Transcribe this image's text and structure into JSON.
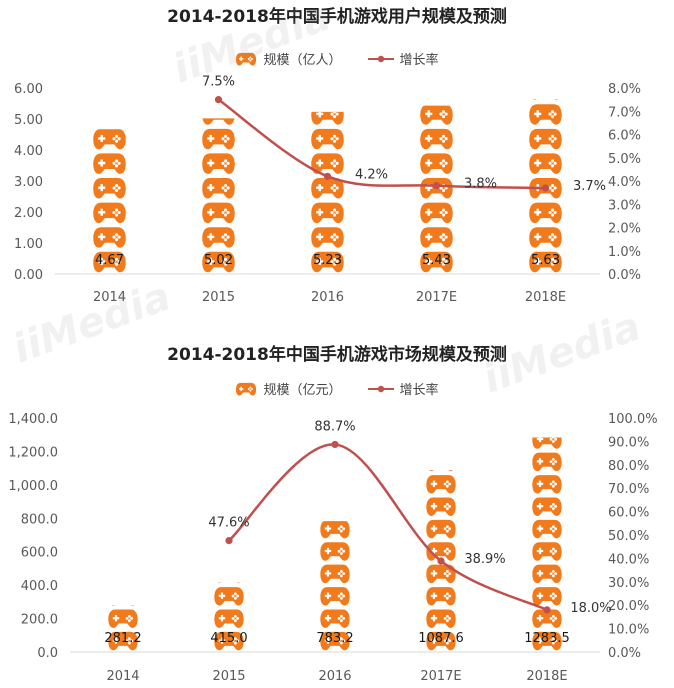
{
  "colors": {
    "bar": "#f07a1c",
    "line": "#c0504d",
    "axis_text": "#595959"
  },
  "watermarks": [
    {
      "text": "iiMedia"
    },
    {
      "text": "iiMedia"
    },
    {
      "text": "iiMedia"
    }
  ],
  "chart_data": [
    {
      "type": "bar",
      "title": "2014-2018年中国手机游戏用户规模及预测",
      "categories": [
        "2014",
        "2015",
        "2016",
        "2017E",
        "2018E"
      ],
      "series": [
        {
          "name": "规模（亿人）",
          "type": "bar",
          "axis": "left",
          "icon": "gamepad-icon",
          "values": [
            4.67,
            5.02,
            5.23,
            5.43,
            5.63
          ],
          "labels": [
            "4.67",
            "5.02",
            "5.23",
            "5.43",
            "5.63"
          ]
        },
        {
          "name": "增长率",
          "type": "line",
          "axis": "right",
          "values": [
            null,
            7.5,
            4.2,
            3.8,
            3.7
          ],
          "labels": [
            "",
            "7.5%",
            "4.2%",
            "3.8%",
            "3.7%"
          ]
        }
      ],
      "y_left": {
        "ylim": [
          0,
          6
        ],
        "ticks": [
          "0.00",
          "1.00",
          "2.00",
          "3.00",
          "4.00",
          "5.00",
          "6.00"
        ]
      },
      "y_right": {
        "ylim": [
          0,
          8
        ],
        "ticks": [
          "0.0%",
          "1.0%",
          "2.0%",
          "3.0%",
          "4.0%",
          "5.0%",
          "6.0%",
          "7.0%",
          "8.0%"
        ]
      },
      "legend_position": "top",
      "grid": false
    },
    {
      "type": "bar",
      "title": "2014-2018年中国手机游戏市场规模及预测",
      "categories": [
        "2014",
        "2015",
        "2016",
        "2017E",
        "2018E"
      ],
      "series": [
        {
          "name": "规模（亿元）",
          "type": "bar",
          "axis": "left",
          "icon": "gamepad-icon",
          "values": [
            281.2,
            415.0,
            783.2,
            1087.6,
            1283.5
          ],
          "labels": [
            "281.2",
            "415.0",
            "783.2",
            "1087.6",
            "1283.5"
          ]
        },
        {
          "name": "增长率",
          "type": "line",
          "axis": "right",
          "values": [
            null,
            47.6,
            88.7,
            38.9,
            18.0
          ],
          "labels": [
            "",
            "47.6%",
            "88.7%",
            "38.9%",
            "18.0%"
          ]
        }
      ],
      "y_left": {
        "ylim": [
          0,
          1400
        ],
        "ticks": [
          "0.0",
          "200.0",
          "400.0",
          "600.0",
          "800.0",
          "1,000.0",
          "1,200.0",
          "1,400.0"
        ]
      },
      "y_right": {
        "ylim": [
          0,
          100
        ],
        "ticks": [
          "0.0%",
          "10.0%",
          "20.0%",
          "30.0%",
          "40.0%",
          "50.0%",
          "60.0%",
          "70.0%",
          "80.0%",
          "90.0%",
          "100.0%"
        ]
      },
      "legend_position": "top",
      "grid": false
    }
  ]
}
